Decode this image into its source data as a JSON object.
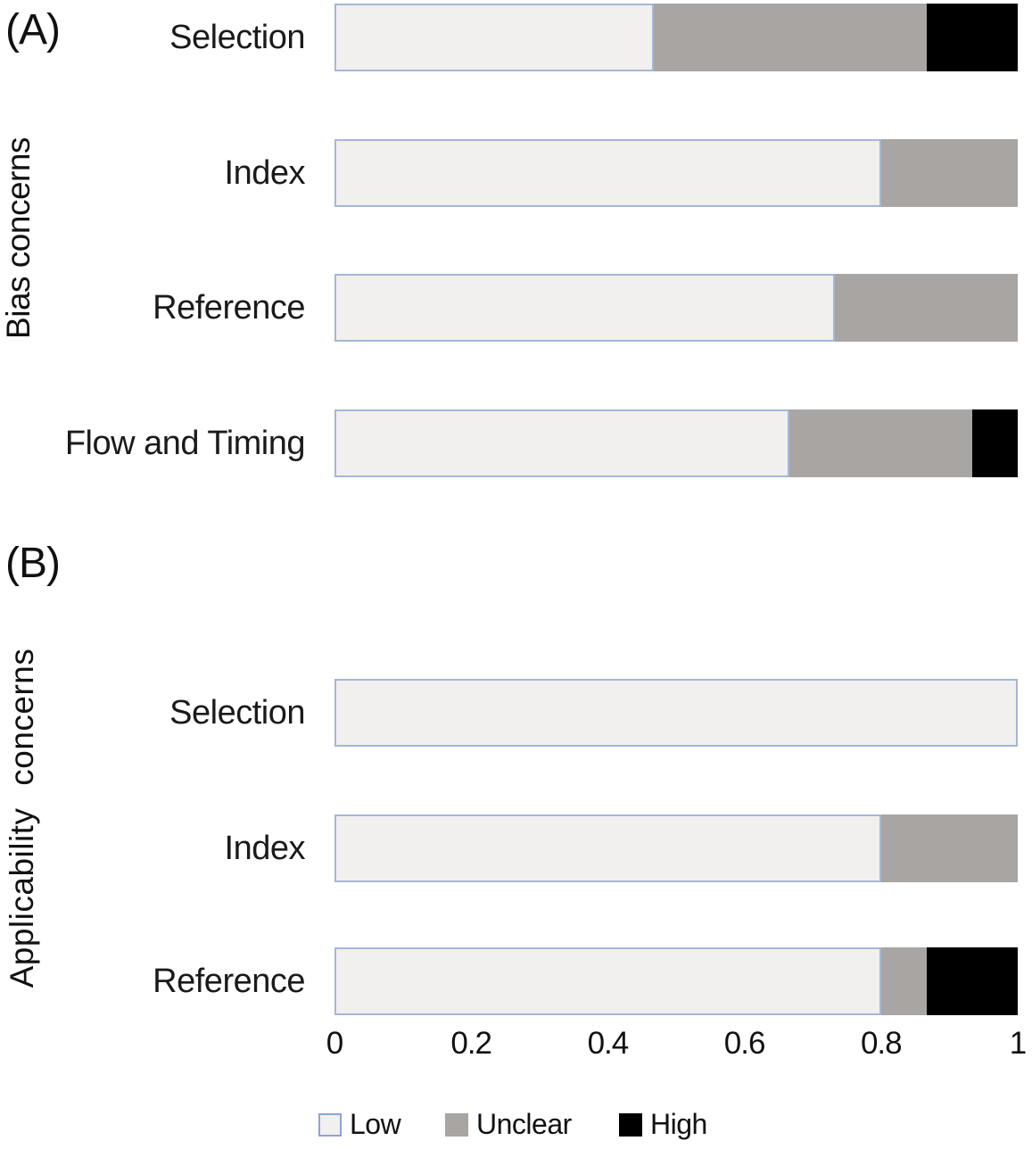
{
  "figure": {
    "panel_a_tag": "(A)",
    "panel_b_tag": "(B)"
  },
  "chart_data": {
    "type": "bar",
    "orientation": "horizontal-stacked",
    "xlabel": "",
    "xlim": [
      0,
      1
    ],
    "x_ticks": [
      "0",
      "0.2",
      "0.4",
      "0.6",
      "0.8",
      "1"
    ],
    "grid": false,
    "legend_position": "bottom",
    "legend": [
      {
        "name": "Low"
      },
      {
        "name": "Unclear"
      },
      {
        "name": "High"
      }
    ],
    "colors": {
      "low_fill": "#f1f0ee",
      "low_border": "#a5b7d6",
      "unclear": "#a8a5a2",
      "high": "#000000"
    },
    "panels": [
      {
        "tag": "(A)",
        "ylabel": "Bias concerns",
        "categories": [
          "Selection",
          "Index",
          "Reference",
          "Flow and Timing"
        ],
        "series": [
          {
            "name": "Low",
            "values": [
              0.467,
              0.8,
              0.733,
              0.667
            ]
          },
          {
            "name": "Unclear",
            "values": [
              0.4,
              0.2,
              0.267,
              0.267
            ]
          },
          {
            "name": "High",
            "values": [
              0.133,
              0.0,
              0.0,
              0.067
            ]
          }
        ]
      },
      {
        "tag": "(B)",
        "ylabel": "Applicability concerns",
        "categories": [
          "Selection",
          "Index",
          "Reference"
        ],
        "series": [
          {
            "name": "Low",
            "values": [
              1.0,
              0.8,
              0.8
            ]
          },
          {
            "name": "Unclear",
            "values": [
              0.0,
              0.2,
              0.067
            ]
          },
          {
            "name": "High",
            "values": [
              0.0,
              0.0,
              0.133
            ]
          }
        ]
      }
    ]
  }
}
